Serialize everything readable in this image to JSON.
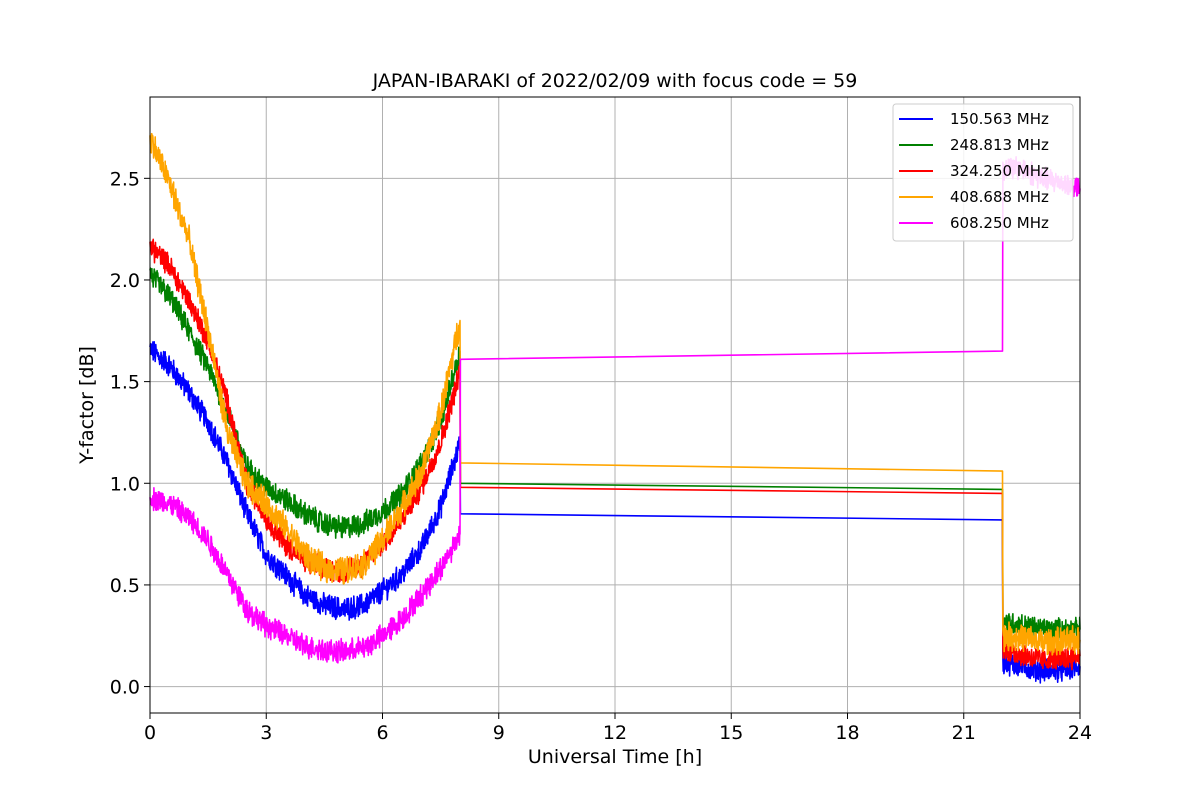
{
  "chart_data": {
    "type": "line",
    "title": "JAPAN-IBARAKI of 2022/02/09 with focus code = 59",
    "xlabel": "Universal Time [h]",
    "ylabel": "Y-factor [dB]",
    "xlim": [
      0,
      24
    ],
    "ylim": [
      -0.13,
      2.9
    ],
    "xticks": [
      0,
      3,
      6,
      9,
      12,
      15,
      18,
      21,
      24
    ],
    "yticks": [
      0.0,
      0.5,
      1.0,
      1.5,
      2.0,
      2.5
    ],
    "xtick_labels": [
      "0",
      "3",
      "6",
      "9",
      "12",
      "15",
      "18",
      "21",
      "24"
    ],
    "ytick_labels": [
      "0.0",
      "0.5",
      "1.0",
      "1.5",
      "2.0",
      "2.5"
    ],
    "grid": true,
    "legend_position": "top-right",
    "series": [
      {
        "name": "150.563 MHz",
        "color": "#0000ff",
        "noise": 0.05,
        "x": [
          0,
          0.5,
          1,
          1.5,
          2,
          2.5,
          3,
          3.5,
          4,
          4.5,
          5,
          5.5,
          6,
          6.5,
          7,
          7.5,
          8,
          8.01,
          22,
          22.01,
          22.5,
          23,
          23.5,
          24
        ],
        "y": [
          1.66,
          1.58,
          1.45,
          1.3,
          1.1,
          0.85,
          0.65,
          0.55,
          0.45,
          0.4,
          0.38,
          0.4,
          0.47,
          0.55,
          0.68,
          0.88,
          1.2,
          0.85,
          0.82,
          0.12,
          0.1,
          0.08,
          0.08,
          0.1
        ]
      },
      {
        "name": "248.813 MHz",
        "color": "#008000",
        "noise": 0.05,
        "x": [
          0,
          0.5,
          1,
          1.5,
          2,
          2.5,
          3,
          3.5,
          4,
          4.5,
          5,
          5.5,
          6,
          6.5,
          7,
          7.5,
          8,
          8.01,
          22,
          22.01,
          22.5,
          23,
          23.5,
          24
        ],
        "y": [
          2.03,
          1.92,
          1.75,
          1.57,
          1.35,
          1.08,
          0.98,
          0.92,
          0.85,
          0.8,
          0.78,
          0.8,
          0.86,
          0.95,
          1.1,
          1.3,
          1.65,
          1.0,
          0.97,
          0.32,
          0.3,
          0.28,
          0.28,
          0.28
        ]
      },
      {
        "name": "324.250 MHz",
        "color": "#ff0000",
        "noise": 0.05,
        "x": [
          0,
          0.5,
          1,
          1.5,
          2,
          2.5,
          3,
          3.5,
          4,
          4.5,
          5,
          5.5,
          6,
          6.5,
          7,
          7.5,
          8,
          8.01,
          22,
          22.01,
          22.5,
          23,
          23.5,
          24
        ],
        "y": [
          2.17,
          2.07,
          1.9,
          1.7,
          1.4,
          1.0,
          0.83,
          0.7,
          0.62,
          0.58,
          0.57,
          0.6,
          0.7,
          0.82,
          0.98,
          1.2,
          1.55,
          0.98,
          0.95,
          0.18,
          0.16,
          0.13,
          0.14,
          0.15
        ]
      },
      {
        "name": "408.688 MHz",
        "color": "#ffa500",
        "noise": 0.06,
        "x": [
          0,
          0.5,
          1,
          1.5,
          2,
          2.5,
          3,
          3.5,
          4,
          4.5,
          5,
          5.5,
          6,
          6.5,
          7,
          7.5,
          8,
          8.01,
          22,
          22.01,
          22.5,
          23,
          23.5,
          24
        ],
        "y": [
          2.7,
          2.48,
          2.2,
          1.75,
          1.25,
          1.0,
          0.9,
          0.78,
          0.65,
          0.58,
          0.57,
          0.6,
          0.72,
          0.88,
          1.05,
          1.35,
          1.8,
          1.1,
          1.06,
          0.25,
          0.24,
          0.22,
          0.22,
          0.23
        ]
      },
      {
        "name": "608.250 MHz",
        "color": "#ff00ff",
        "noise": 0.05,
        "x": [
          0,
          0.5,
          1,
          1.5,
          2,
          2.5,
          3,
          3.5,
          4,
          4.5,
          5,
          5.5,
          6,
          6.5,
          7,
          7.5,
          8,
          8.01,
          22,
          22.01,
          22.5,
          23,
          23.5,
          24
        ],
        "y": [
          0.93,
          0.9,
          0.83,
          0.72,
          0.55,
          0.38,
          0.3,
          0.25,
          0.2,
          0.18,
          0.17,
          0.19,
          0.25,
          0.33,
          0.45,
          0.58,
          0.75,
          1.61,
          1.65,
          2.55,
          2.55,
          2.5,
          2.48,
          2.45
        ]
      }
    ]
  }
}
